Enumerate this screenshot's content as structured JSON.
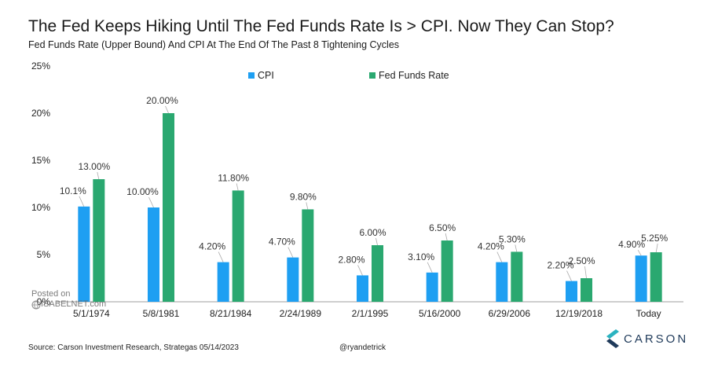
{
  "title": "The Fed Keeps Hiking Until The Fed Funds Rate Is > CPI. Now They Can Stop?",
  "subtitle": "Fed Funds Rate (Upper Bound) And CPI At The End Of The Past 8 Tightening Cycles",
  "footer": {
    "source": "Source: Carson Investment Research, Strategas 05/14/2023",
    "handle": "@ryandetrick"
  },
  "watermark": {
    "line1": "Posted on",
    "line2": "ISABELNET.com"
  },
  "logo": {
    "text": "CARSON"
  },
  "colors": {
    "cpi": "#1e9ff2",
    "ffr": "#2aa870",
    "axis": "#9e9e9e",
    "text": "#222222"
  },
  "chart_data": {
    "type": "bar",
    "categories": [
      "5/1/1974",
      "5/8/1981",
      "8/21/1984",
      "2/24/1989",
      "2/1/1995",
      "5/16/2000",
      "6/29/2006",
      "12/19/2018",
      "Today"
    ],
    "series": [
      {
        "name": "CPI",
        "values": [
          10.1,
          10.0,
          4.2,
          4.7,
          2.8,
          3.1,
          4.2,
          2.2,
          4.9
        ],
        "labels": [
          "10.1%",
          "10.00%",
          "4.20%",
          "4.70%",
          "2.80%",
          "3.10%",
          "4.20%",
          "2.20%",
          "4.90%"
        ]
      },
      {
        "name": "Fed Funds Rate",
        "values": [
          13.0,
          20.0,
          11.8,
          9.8,
          6.0,
          6.5,
          5.3,
          2.5,
          5.25
        ],
        "labels": [
          "13.00%",
          "20.00%",
          "11.80%",
          "9.80%",
          "6.00%",
          "6.50%",
          "5.30%",
          "2.50%",
          "5.25%"
        ]
      }
    ],
    "yticks": [
      "0%",
      "5%",
      "10%",
      "15%",
      "20%",
      "25%"
    ],
    "ylim": [
      0,
      25
    ],
    "legend": "top-center",
    "grid": false
  }
}
